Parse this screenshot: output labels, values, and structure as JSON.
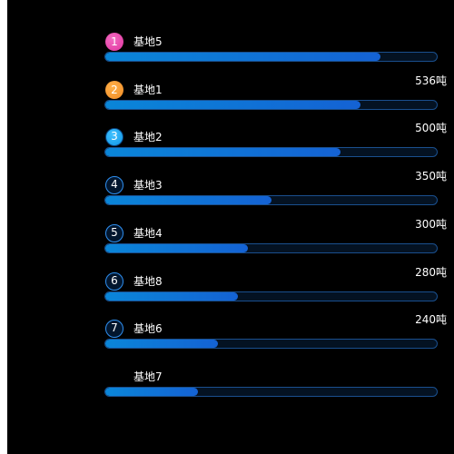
{
  "chart_data": {
    "type": "bar",
    "orientation": "horizontal",
    "title": "",
    "unit": "吨",
    "max": 100,
    "items": [
      {
        "rank": "1",
        "name": "基地5",
        "value_label": "",
        "percent": 83,
        "badge_style": "pink"
      },
      {
        "rank": "2",
        "name": "基地1",
        "value_label": "536吨",
        "percent": 77,
        "badge_style": "orange"
      },
      {
        "rank": "3",
        "name": "基地2",
        "value_label": "500吨",
        "percent": 71,
        "badge_style": "blue"
      },
      {
        "rank": "4",
        "name": "基地3",
        "value_label": "350吨",
        "percent": 50,
        "badge_style": "outline"
      },
      {
        "rank": "5",
        "name": "基地4",
        "value_label": "300吨",
        "percent": 43,
        "badge_style": "outline"
      },
      {
        "rank": "6",
        "name": "基地8",
        "value_label": "280吨",
        "percent": 40,
        "badge_style": "outline"
      },
      {
        "rank": "7",
        "name": "基地6",
        "value_label": "240吨",
        "percent": 34,
        "badge_style": "outline"
      },
      {
        "rank": "",
        "name": "基地7",
        "value_label": "",
        "percent": 28,
        "badge_style": "none"
      }
    ]
  },
  "colors": {
    "background": "#000000",
    "bar_start": "#0a86d8",
    "bar_end": "#1462d4",
    "track_border": "#1a4f8e",
    "badge_pink": "#e0349e",
    "badge_orange": "#f08a24",
    "badge_blue": "#0f96e6",
    "badge_outline_border": "#2f8ff0"
  }
}
